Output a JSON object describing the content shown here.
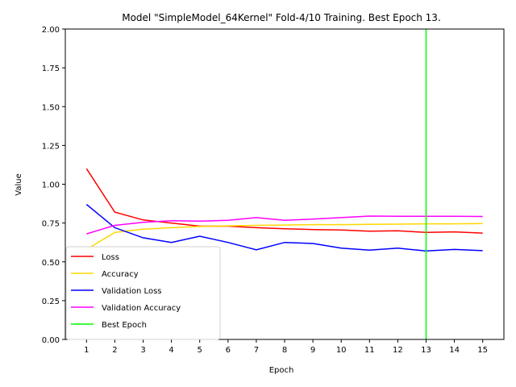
{
  "chart_data": {
    "type": "line",
    "title": "Model \"SimpleModel_64Kernel\" Fold-4/10 Training. Best Epoch 13.",
    "xlabel": "Epoch",
    "ylabel": "Value",
    "x": [
      1,
      2,
      3,
      4,
      5,
      6,
      7,
      8,
      9,
      10,
      11,
      12,
      13,
      14,
      15
    ],
    "xlim": [
      0.25,
      15.75
    ],
    "ylim": [
      0,
      2
    ],
    "yticks": [
      "0.00",
      "0.25",
      "0.50",
      "0.75",
      "1.00",
      "1.25",
      "1.50",
      "1.75",
      "2.00"
    ],
    "ytick_values": [
      0,
      0.25,
      0.5,
      0.75,
      1.0,
      1.25,
      1.5,
      1.75,
      2.0
    ],
    "grid": false,
    "legend_position": "lower-left",
    "series": [
      {
        "name": "Loss",
        "color": "#ff0000",
        "values": [
          1.1,
          0.82,
          0.77,
          0.75,
          0.73,
          0.73,
          0.72,
          0.713,
          0.708,
          0.705,
          0.697,
          0.7,
          0.69,
          0.693,
          0.685
        ]
      },
      {
        "name": "Accuracy",
        "color": "#ffd700",
        "values": [
          0.58,
          0.69,
          0.71,
          0.72,
          0.728,
          0.732,
          0.735,
          0.737,
          0.74,
          0.74,
          0.742,
          0.743,
          0.745,
          0.745,
          0.747
        ]
      },
      {
        "name": "Validation Loss",
        "color": "#0000ff",
        "values": [
          0.87,
          0.72,
          0.655,
          0.625,
          0.665,
          0.625,
          0.577,
          0.625,
          0.618,
          0.588,
          0.575,
          0.588,
          0.57,
          0.58,
          0.572
        ]
      },
      {
        "name": "Validation  Accuracy",
        "color": "#ff00ff",
        "values": [
          0.68,
          0.735,
          0.755,
          0.765,
          0.762,
          0.768,
          0.785,
          0.768,
          0.775,
          0.785,
          0.795,
          0.793,
          0.793,
          0.793,
          0.792
        ]
      }
    ],
    "best_epoch": {
      "name": "Best Epoch",
      "color": "#00ff00",
      "x": 13
    }
  }
}
